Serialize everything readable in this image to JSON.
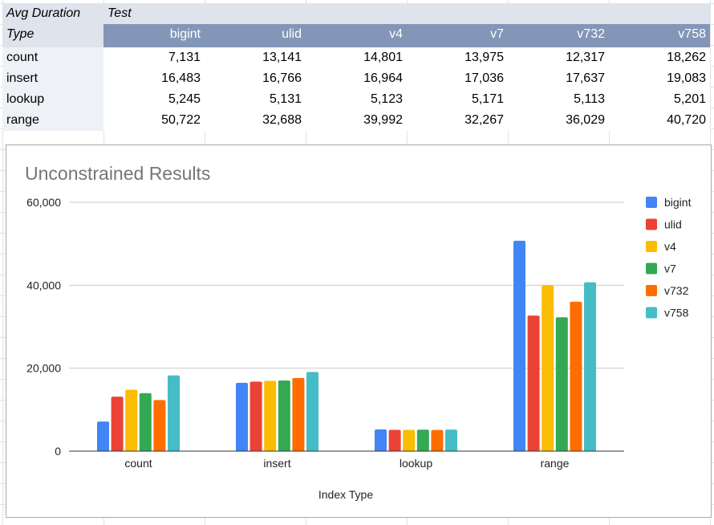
{
  "table": {
    "header_row1": {
      "label": "Avg Duration",
      "value": "Test"
    },
    "header_row2": {
      "label": "Type",
      "columns": [
        "bigint",
        "ulid",
        "v4",
        "v7",
        "v732",
        "v758"
      ]
    },
    "rows": [
      {
        "label": "count",
        "values": [
          "7,131",
          "13,141",
          "14,801",
          "13,975",
          "12,317",
          "18,262"
        ]
      },
      {
        "label": "insert",
        "values": [
          "16,483",
          "16,766",
          "16,964",
          "17,036",
          "17,637",
          "19,083"
        ]
      },
      {
        "label": "lookup",
        "values": [
          "5,245",
          "5,131",
          "5,123",
          "5,171",
          "5,113",
          "5,201"
        ]
      },
      {
        "label": "range",
        "values": [
          "50,722",
          "32,688",
          "39,992",
          "32,267",
          "36,029",
          "40,720"
        ]
      }
    ]
  },
  "chart_data": {
    "type": "bar",
    "title": "Unconstrained Results",
    "xlabel": "Index Type",
    "ylabel": "",
    "categories": [
      "count",
      "insert",
      "lookup",
      "range"
    ],
    "ylim": [
      0,
      60000
    ],
    "yticks": [
      0,
      20000,
      40000,
      60000
    ],
    "ytick_labels": [
      "0",
      "20,000",
      "40,000",
      "60,000"
    ],
    "grid": true,
    "legend_position": "right",
    "series": [
      {
        "name": "bigint",
        "color": "#4285f4",
        "values": [
          7131,
          16483,
          5245,
          50722
        ]
      },
      {
        "name": "ulid",
        "color": "#ea4335",
        "values": [
          13141,
          16766,
          5131,
          32688
        ]
      },
      {
        "name": "v4",
        "color": "#fbbc04",
        "values": [
          14801,
          16964,
          5123,
          39992
        ]
      },
      {
        "name": "v7",
        "color": "#34a853",
        "values": [
          13975,
          17036,
          5171,
          32267
        ]
      },
      {
        "name": "v732",
        "color": "#ff6d01",
        "values": [
          12317,
          17637,
          5113,
          36029
        ]
      },
      {
        "name": "v758",
        "color": "#46bdc6",
        "values": [
          18262,
          19083,
          5201,
          40720
        ]
      }
    ]
  }
}
